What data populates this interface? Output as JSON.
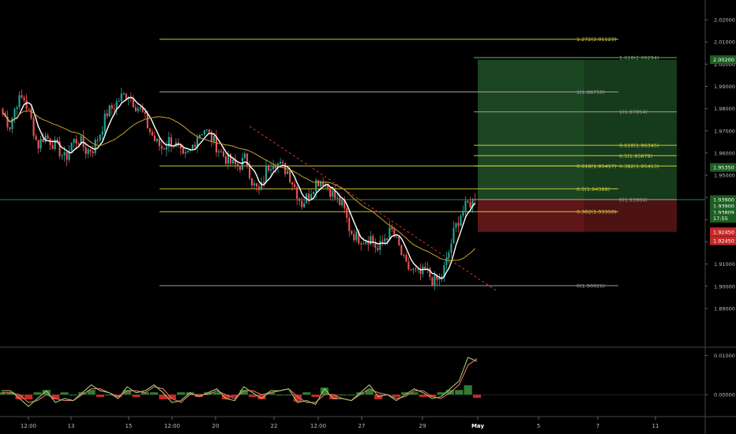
{
  "chart_data": {
    "type": "line",
    "instrument_view": "candlestick price chart with Fibonacci levels, long-position tool and oscillator",
    "colors": {
      "background": "#000000",
      "up_candle": "#26a69a",
      "down_candle": "#ef5350",
      "ma_white": "#ffffff",
      "ma_gold": "#c9a227",
      "fib_level": "#c8c838",
      "fib_grey": "#9e9e9e",
      "trendline": "#e03030",
      "target_zone": "#1e4d25",
      "stop_zone": "#5a1515",
      "price_badge_green": "#1b5e20",
      "price_badge_red": "#c62828",
      "osc_fast": "#9ccc65",
      "osc_slow": "#e57373",
      "hist_up": "#2e7d32",
      "hist_down": "#c62828"
    },
    "price_axis": {
      "ylim": [
        1.8825,
        2.0225
      ],
      "ticks": [
        "2.02000",
        "2.01000",
        "2.00000",
        "1.99000",
        "1.98000",
        "1.97000",
        "1.96000",
        "1.95000",
        "1.94000",
        "1.93000",
        "1.92000",
        "1.91000",
        "1.90000",
        "1.89000"
      ]
    },
    "price_badges": [
      {
        "label": "2.00200",
        "value": 2.002,
        "color": "#1b5e20"
      },
      {
        "label": "1.95350",
        "value": 1.9535,
        "color": "#1b5e20"
      },
      {
        "label": "1.93900",
        "value": 1.939,
        "color": "#1b5e20"
      },
      {
        "label": "1.93900",
        "value": 1.9362,
        "color": "#1b5e20"
      },
      {
        "label": "1.93809",
        "value": 1.9334,
        "color": "#1b5e20"
      },
      {
        "label": "17:55",
        "value": 1.9306,
        "color": "#1b5e20"
      },
      {
        "label": "1.92450",
        "value": 1.9245,
        "color": "#c62828"
      },
      {
        "label": "1.92450",
        "value": 1.9205,
        "color": "#c62828"
      }
    ],
    "current_price": 1.939,
    "x_axis": {
      "ticks": [
        "12:00",
        "13",
        "15",
        "12:00",
        "20",
        "22",
        "12:00",
        "27",
        "29",
        "May",
        "5",
        "7",
        "11"
      ]
    },
    "fib_levels": [
      {
        "label": "1.272(2.01123)",
        "value": 2.01123,
        "group": "A"
      },
      {
        "label": "1(1.98750)",
        "value": 1.9875,
        "group": "A"
      },
      {
        "label": "0.618(1.95417)",
        "value": 1.95417,
        "group": "A"
      },
      {
        "label": "0.5(1.94388)",
        "value": 1.94388,
        "group": "A"
      },
      {
        "label": "0.382(1.93358)",
        "value": 1.93358,
        "group": "A"
      },
      {
        "label": "0(1.90026)",
        "value": 1.90026,
        "group": "A"
      },
      {
        "label": "1.618(2.00294)",
        "value": 2.00294,
        "group": "B"
      },
      {
        "label": "1(1.97854)",
        "value": 1.97854,
        "group": "B"
      },
      {
        "label": "0.618(1.96345)",
        "value": 1.96345,
        "group": "B"
      },
      {
        "label": "0.5(1.95879)",
        "value": 1.95879,
        "group": "B"
      },
      {
        "label": "0.382(1.95413)",
        "value": 1.95413,
        "group": "B"
      },
      {
        "label": "0(1.93904)",
        "value": 1.93904,
        "group": "B"
      }
    ],
    "position_tool": {
      "entry": 1.939,
      "target": 2.002,
      "stop": 1.9245
    },
    "close_series": [
      1.978,
      1.972,
      1.983,
      1.985,
      1.976,
      1.963,
      1.968,
      1.965,
      1.962,
      1.957,
      1.965,
      1.966,
      1.961,
      1.962,
      1.969,
      1.978,
      1.981,
      1.985,
      1.987,
      1.982,
      1.979,
      1.971,
      1.965,
      1.962,
      1.966,
      1.963,
      1.957,
      1.961,
      1.968,
      1.971,
      1.967,
      1.962,
      1.958,
      1.955,
      1.954,
      1.958,
      1.946,
      1.942,
      1.953,
      1.957,
      1.954,
      1.952,
      1.945,
      1.937,
      1.941,
      1.947,
      1.948,
      1.944,
      1.939,
      1.936,
      1.925,
      1.922,
      1.921,
      1.922,
      1.916,
      1.922,
      1.925,
      1.918,
      1.909,
      1.907,
      1.905,
      1.907,
      1.902,
      1.903,
      1.912,
      1.925,
      1.933,
      1.937,
      1.939
    ],
    "oscillator": {
      "ylim": [
        -0.004,
        0.0105
      ],
      "ticks": [
        "0.01000",
        "0.00000"
      ],
      "fast": [
        0.001,
        0.001,
        -0.001,
        -0.003,
        -0.001,
        0.001,
        -0.002,
        -0.001,
        -0.0015,
        0.0005,
        0.0025,
        0.001,
        0.0005,
        -0.001,
        0.002,
        0.0005,
        0.001,
        0.0025,
        0.0005,
        -0.002,
        -0.0015,
        0.0005,
        -0.0005,
        0.0005,
        0.0015,
        -0.001,
        -0.0015,
        0.002,
        0.0005,
        -0.001,
        0.001,
        0.001,
        0.0015,
        -0.002,
        -0.0015,
        -0.0025,
        0.0015,
        -0.001,
        -0.001,
        -0.0015,
        0.0005,
        0.0025,
        -0.0005,
        0.0,
        -0.0015,
        0.0,
        0.0015,
        0.0005,
        -0.001,
        -0.0005,
        0.0015,
        0.0035,
        0.0095,
        0.0085
      ],
      "slow": [
        0.0005,
        0.0005,
        0.0,
        -0.002,
        -0.0015,
        0.0,
        -0.001,
        -0.0015,
        -0.0015,
        0.0,
        0.0015,
        0.0015,
        0.0005,
        -0.0005,
        0.001,
        0.001,
        0.0005,
        0.002,
        0.0015,
        -0.001,
        -0.002,
        0.0,
        0.0,
        0.0,
        0.001,
        0.0,
        -0.001,
        0.001,
        0.001,
        0.0,
        0.0005,
        0.001,
        0.0015,
        -0.0005,
        -0.002,
        -0.002,
        0.0,
        0.0,
        -0.001,
        -0.0015,
        0.0,
        0.0015,
        0.0005,
        0.0,
        -0.001,
        -0.0005,
        0.001,
        0.001,
        -0.0005,
        -0.001,
        0.0005,
        0.0025,
        0.0075,
        0.0092
      ]
    }
  }
}
